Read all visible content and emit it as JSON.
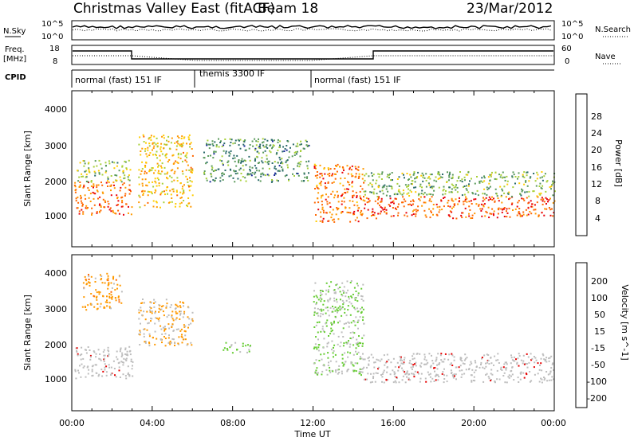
{
  "header": {
    "station": "Christmas Valley East (fitACF)",
    "beam": "Beam 18",
    "date": "23/Mar/2012"
  },
  "noise_panel": {
    "left_label": "N.Sky",
    "right_label": "N.Search",
    "left_ticks": [
      "10^5",
      "10^0"
    ],
    "right_ticks": [
      "10^5",
      "10^0"
    ]
  },
  "freq_panel": {
    "left_label_top": "Freq.",
    "left_label_bottom": "[MHz]",
    "right_label": "Nave",
    "left_ticks": [
      "18",
      "8"
    ],
    "right_ticks": [
      "60",
      "0"
    ]
  },
  "cpid": {
    "label": "CPID",
    "segments": [
      {
        "name": "normal (fast) 151 IF",
        "start": 0.0,
        "end": 6.0
      },
      {
        "name": "themis 3300 IF",
        "start": 6.0,
        "end": 12.0
      },
      {
        "name": "normal (fast) 151 IF",
        "start": 12.0,
        "end": 24.0
      }
    ]
  },
  "power_panel": {
    "ylabel": "Slant Range [km]",
    "yticks": [
      "1000",
      "2000",
      "3000",
      "4000"
    ],
    "colorbar_label": "Power [dB]",
    "colorbar_ticks": [
      "28",
      "24",
      "20",
      "16",
      "12",
      "8",
      "4"
    ]
  },
  "velocity_panel": {
    "ylabel": "Slant Range [km]",
    "yticks": [
      "1000",
      "2000",
      "3000",
      "4000"
    ],
    "colorbar_label": "Velocity [m s^-1]",
    "colorbar_ticks": [
      "200",
      "100",
      "50",
      "15",
      "-15",
      "-50",
      "-100",
      "-200"
    ]
  },
  "xaxis": {
    "label": "Time UT",
    "ticks": [
      "00:00",
      "04:00",
      "08:00",
      "12:00",
      "16:00",
      "20:00",
      "00:00"
    ]
  },
  "colors": {
    "power_scale": [
      "#e8000a",
      "#ff6600",
      "#ff9900",
      "#ffcc00",
      "#a8d038",
      "#5a9a5a",
      "#2a6a6a",
      "#1a2a9a",
      "#0000ff"
    ],
    "velocity_scale": [
      "#0000cc",
      "#1a3a8a",
      "#2a6a3a",
      "#66cc33",
      "#bdbdbd",
      "#ff9900",
      "#ff6600",
      "#ff3300",
      "#e60000"
    ],
    "ground_scatter": "#bdbdbd"
  },
  "chart_data": [
    {
      "type": "heatmap",
      "title": "Power",
      "xlabel": "Time UT",
      "ylabel": "Slant Range [km]",
      "xlim": [
        0,
        24
      ],
      "ylim": [
        200,
        4500
      ],
      "zlabel": "Power [dB]",
      "zlim": [
        0,
        30
      ],
      "bands": [
        {
          "x": [
            0.1,
            3.0
          ],
          "range_km": [
            1100,
            2000
          ],
          "power_db": 26
        },
        {
          "x": [
            0.2,
            2.9
          ],
          "range_km": [
            2000,
            2600
          ],
          "power_db": 14
        },
        {
          "x": [
            3.3,
            6.0
          ],
          "range_km": [
            1300,
            3300
          ],
          "power_db": 20
        },
        {
          "x": [
            6.5,
            11.8
          ],
          "range_km": [
            2000,
            3200
          ],
          "power_db": 10
        },
        {
          "x": [
            12.0,
            14.5
          ],
          "range_km": [
            900,
            2500
          ],
          "power_db": 25
        },
        {
          "x": [
            14.5,
            24.0
          ],
          "range_km": [
            1000,
            1600
          ],
          "power_db": 27
        },
        {
          "x": [
            14.5,
            24.0
          ],
          "range_km": [
            1600,
            2300
          ],
          "power_db": 13
        }
      ]
    },
    {
      "type": "heatmap",
      "title": "Velocity",
      "xlabel": "Time UT",
      "ylabel": "Slant Range [km]",
      "xlim": [
        0,
        24
      ],
      "ylim": [
        200,
        4500
      ],
      "zlabel": "Velocity [m s^-1]",
      "zlim": [
        -200,
        200
      ],
      "bands": [
        {
          "x": [
            0.1,
            3.0
          ],
          "range_km": [
            1100,
            2000
          ],
          "velocity": 0
        },
        {
          "x": [
            0.5,
            2.5
          ],
          "range_km": [
            3000,
            4000
          ],
          "velocity": -50
        },
        {
          "x": [
            3.3,
            6.0
          ],
          "range_km": [
            2000,
            3300
          ],
          "velocity": -30
        },
        {
          "x": [
            7.5,
            9.0
          ],
          "range_km": [
            1800,
            2100
          ],
          "velocity": 30
        },
        {
          "x": [
            12.0,
            14.5
          ],
          "range_km": [
            1200,
            3800
          ],
          "velocity": 25
        },
        {
          "x": [
            14.5,
            24.0
          ],
          "range_km": [
            1000,
            1800
          ],
          "velocity": 0
        }
      ]
    }
  ]
}
